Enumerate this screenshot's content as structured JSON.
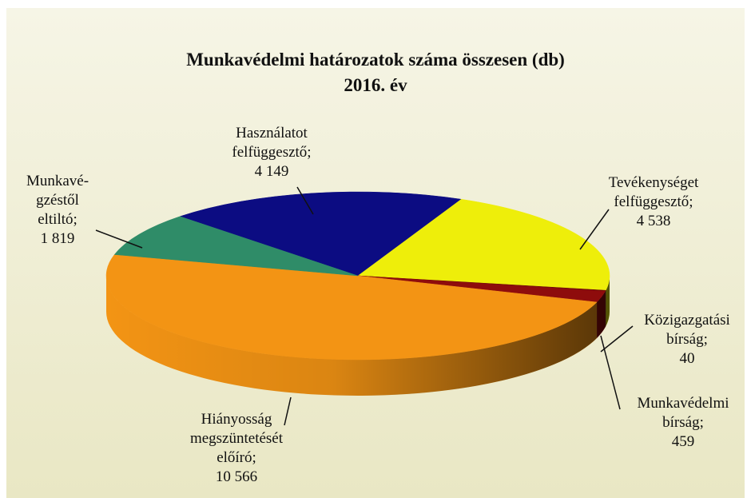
{
  "chart_data": {
    "type": "pie3d",
    "title": "Munkavédelmi  határozatok  száma  összesen (db)",
    "subtitle": "2016.  év",
    "categories": [
      "Használatot\nfelfüggesztő;",
      "Tevékenységet\nfelfüggesztő;",
      "Közigazgatási\nbírság;",
      "Munkavédelmi\nbírság;",
      "Hiányosság\nmegszüntetését\nelőíró;",
      "Munkavé-\ngzéstől\neltiltó;"
    ],
    "values": [
      4149,
      4538,
      40,
      459,
      10566,
      1819
    ],
    "value_labels": [
      "4 149",
      "4 538",
      "40",
      "459",
      "10 566",
      "1 819"
    ],
    "colors": [
      "#0c0c82",
      "#eeee0a",
      "#6e0a0a",
      "#8e0c0c",
      "#f39414",
      "#2f8c68"
    ]
  }
}
